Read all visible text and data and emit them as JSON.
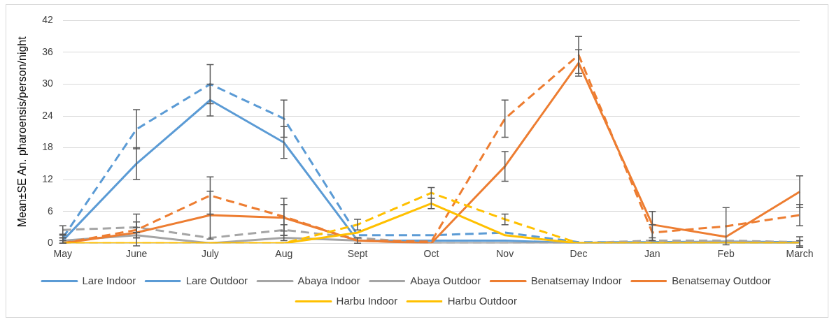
{
  "chart_data": {
    "type": "line",
    "ylabel": "Mean±SE An. pharoensis/person/night",
    "categories": [
      "May",
      "June",
      "July",
      "Aug",
      "Sept",
      "Oct",
      "Nov",
      "Dec",
      "Jan",
      "Feb",
      "March"
    ],
    "ylim": [
      0,
      42
    ],
    "yticks": [
      0,
      6,
      12,
      18,
      24,
      30,
      36,
      42
    ],
    "grid": "y",
    "legend": "bottom",
    "marker": "none",
    "series": [
      {
        "name": "Lare Indoor",
        "color": "#5b9bd5",
        "line_style": "solid",
        "values": [
          0.5,
          15,
          27,
          19,
          0.5,
          0.5,
          0.5,
          0,
          0,
          0,
          0
        ],
        "errors": [
          0.5,
          3,
          3,
          3,
          0.5,
          null,
          null,
          null,
          null,
          null,
          null
        ]
      },
      {
        "name": "Lare Outdoor",
        "color": "#5b9bd5",
        "line_style": "dashed",
        "values": [
          1,
          21.5,
          30,
          23.5,
          1.5,
          1.5,
          2,
          0.2,
          0.2,
          0.3,
          0.2
        ],
        "errors": [
          0.5,
          3.7,
          3.7,
          3.5,
          null,
          null,
          null,
          null,
          null,
          null,
          null
        ]
      },
      {
        "name": "Abaya Indoor",
        "color": "#a5a5a5",
        "line_style": "solid",
        "values": [
          0.5,
          1.5,
          0,
          1,
          0.5,
          0,
          0,
          0,
          0,
          0.3,
          0
        ],
        "errors": [
          0.5,
          0.5,
          null,
          0.5,
          null,
          null,
          null,
          null,
          null,
          null,
          0.5
        ]
      },
      {
        "name": "Abaya Outdoor",
        "color": "#a5a5a5",
        "line_style": "dashed",
        "values": [
          2.5,
          3,
          1,
          2.5,
          1,
          0,
          0,
          0,
          0.5,
          0.5,
          0.2
        ],
        "errors": [
          0.8,
          1,
          null,
          1,
          null,
          null,
          null,
          null,
          null,
          null,
          1
        ]
      },
      {
        "name": "Benatsemay Indoor",
        "color": "#ed7d31",
        "line_style": "solid",
        "values": [
          0,
          2,
          5.3,
          4.8,
          0.5,
          0,
          14.5,
          34,
          3.5,
          1.2,
          9.7
        ],
        "errors": [
          null,
          1,
          4.5,
          2.5,
          null,
          null,
          2.8,
          2.5,
          2.5,
          null,
          3
        ]
      },
      {
        "name": "Benatsemay Outdoor",
        "color": "#ed7d31",
        "line_style": "dashed",
        "values": [
          0,
          2.5,
          9,
          5,
          0.5,
          0.3,
          23.5,
          35.5,
          2,
          3.2,
          5.3
        ],
        "errors": [
          null,
          3,
          3.5,
          3.5,
          null,
          null,
          3.5,
          3.5,
          1.5,
          3.5,
          2
        ]
      },
      {
        "name": "Harbu Indoor",
        "color": "#ffc000",
        "line_style": "solid",
        "values": [
          0,
          0,
          0,
          0,
          2,
          7.5,
          1.5,
          0,
          0,
          0,
          0
        ],
        "errors": [
          null,
          null,
          null,
          null,
          null,
          1,
          null,
          null,
          null,
          null,
          null
        ]
      },
      {
        "name": "Harbu Outdoor",
        "color": "#ffc000",
        "line_style": "dashed",
        "values": [
          0,
          0,
          0,
          0,
          3.5,
          9.5,
          4.5,
          0,
          0,
          0,
          0
        ],
        "errors": [
          null,
          null,
          null,
          null,
          1,
          1,
          1,
          null,
          null,
          null,
          null
        ]
      }
    ]
  }
}
